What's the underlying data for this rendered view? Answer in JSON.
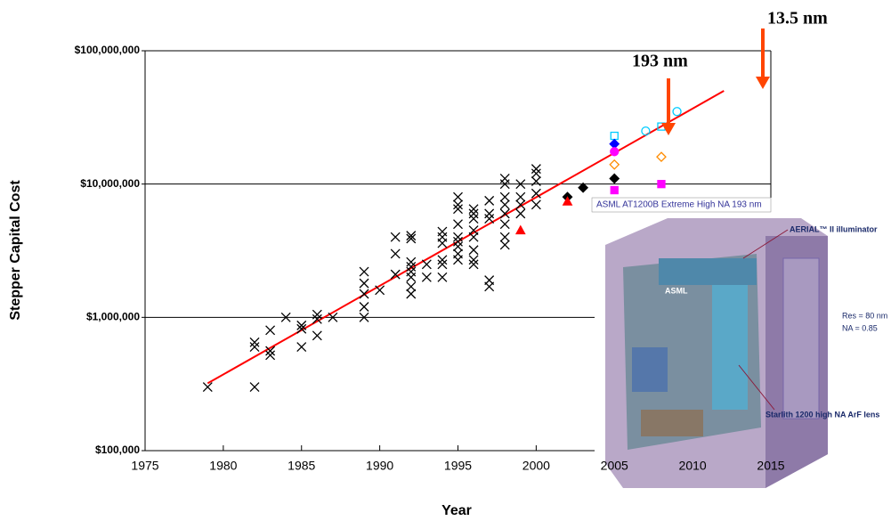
{
  "chart_data": {
    "type": "scatter",
    "xlabel": "Year",
    "ylabel": "Stepper Capital Cost",
    "xlim": [
      1975,
      2015
    ],
    "xticks": [
      1975,
      1980,
      1985,
      1990,
      1995,
      2000,
      2005,
      2010,
      2015
    ],
    "ylim": [
      100000,
      100000000
    ],
    "log_y": true,
    "yticks": [
      {
        "value": 100000,
        "label": "$100,000"
      },
      {
        "value": 1000000,
        "label": "$1,000,000"
      },
      {
        "value": 10000000,
        "label": "$10,000,000"
      },
      {
        "value": 100000000,
        "label": "$100,000,000"
      }
    ],
    "series": [
      {
        "marker": "x",
        "color": "#000000",
        "x": [
          1979,
          1982,
          1982,
          1982,
          1983,
          1983,
          1983,
          1984,
          1985,
          1985,
          1985,
          1986,
          1986,
          1986,
          1987,
          1989,
          1989,
          1989,
          1989,
          1989,
          1990,
          1991,
          1991,
          1991,
          1992,
          1992,
          1992,
          1992,
          1992,
          1992,
          1992,
          1992,
          1993,
          1993,
          1994,
          1994,
          1994,
          1994,
          1994,
          1994,
          1995,
          1995,
          1995,
          1995,
          1995,
          1995,
          1995,
          1995,
          1995,
          1996,
          1996,
          1996,
          1996,
          1996,
          1996,
          1996,
          1996,
          1997,
          1997,
          1997,
          1997,
          1997,
          1998,
          1998,
          1998,
          1998,
          1998,
          1998,
          1998,
          1998,
          1999,
          1999,
          1999,
          1999,
          2000,
          2000,
          2000,
          2000,
          2000
        ],
        "values": [
          300000,
          300000,
          600000,
          650000,
          520000,
          560000,
          800000,
          1000000,
          600000,
          820000,
          870000,
          730000,
          970000,
          1050000,
          1000000,
          1000000,
          1200000,
          1500000,
          1800000,
          2200000,
          1600000,
          2100000,
          3000000,
          4000000,
          1500000,
          1700000,
          2000000,
          2200000,
          2400000,
          2600000,
          3900000,
          4100000,
          2000000,
          2500000,
          2000000,
          2500000,
          2700000,
          3600000,
          4000000,
          4400000,
          2700000,
          3000000,
          3400000,
          3700000,
          4000000,
          5000000,
          6500000,
          7000000,
          8000000,
          2500000,
          2700000,
          3200000,
          4000000,
          4500000,
          5500000,
          6000000,
          6500000,
          1700000,
          1900000,
          5500000,
          6000000,
          7500000,
          3500000,
          4000000,
          5000000,
          6000000,
          7000000,
          8000000,
          10000000,
          11000000,
          6000000,
          7000000,
          8000000,
          10000000,
          7000000,
          8500000,
          10500000,
          12000000,
          13000000
        ]
      },
      {
        "marker": "diamond",
        "color": "#000000",
        "x": [
          2002,
          2003,
          2005
        ],
        "values": [
          8000000,
          9400000,
          11000000
        ]
      },
      {
        "marker": "triangle",
        "color": "#ff0000",
        "x": [
          1999,
          2002
        ],
        "values": [
          4500000,
          7400000
        ]
      },
      {
        "marker": "square-open",
        "color": "#00ccff",
        "x": [
          2005,
          2008
        ],
        "values": [
          23000000,
          27000000
        ]
      },
      {
        "marker": "circle-open",
        "color": "#00ccff",
        "x": [
          2007,
          2009
        ],
        "values": [
          25000000,
          35000000
        ]
      },
      {
        "marker": "diamond",
        "color": "#0000ff",
        "x": [
          2005
        ],
        "values": [
          20000000
        ]
      },
      {
        "marker": "circle",
        "color": "#ff00ff",
        "x": [
          2005
        ],
        "values": [
          17500000
        ]
      },
      {
        "marker": "diamond-open",
        "color": "#ff8c00",
        "x": [
          2005,
          2008
        ],
        "values": [
          14000000,
          16000000
        ]
      },
      {
        "marker": "square",
        "color": "#ff00ff",
        "x": [
          2005,
          2008
        ],
        "values": [
          9000000,
          10000000
        ]
      }
    ],
    "trend": {
      "color": "#ff0000",
      "x": [
        1979,
        2012
      ],
      "values": [
        320000,
        50000000
      ]
    },
    "annotations": [
      "193 nm",
      "13.5 nm",
      "ASML AT1200B Extreme High NA 193 nm"
    ],
    "image_labels": [
      "AERIAL™ II illuminator",
      "Res = 80 nm",
      "NA = 0.85",
      "Starlith 1200 high NA ArF lens",
      "ASML"
    ]
  }
}
